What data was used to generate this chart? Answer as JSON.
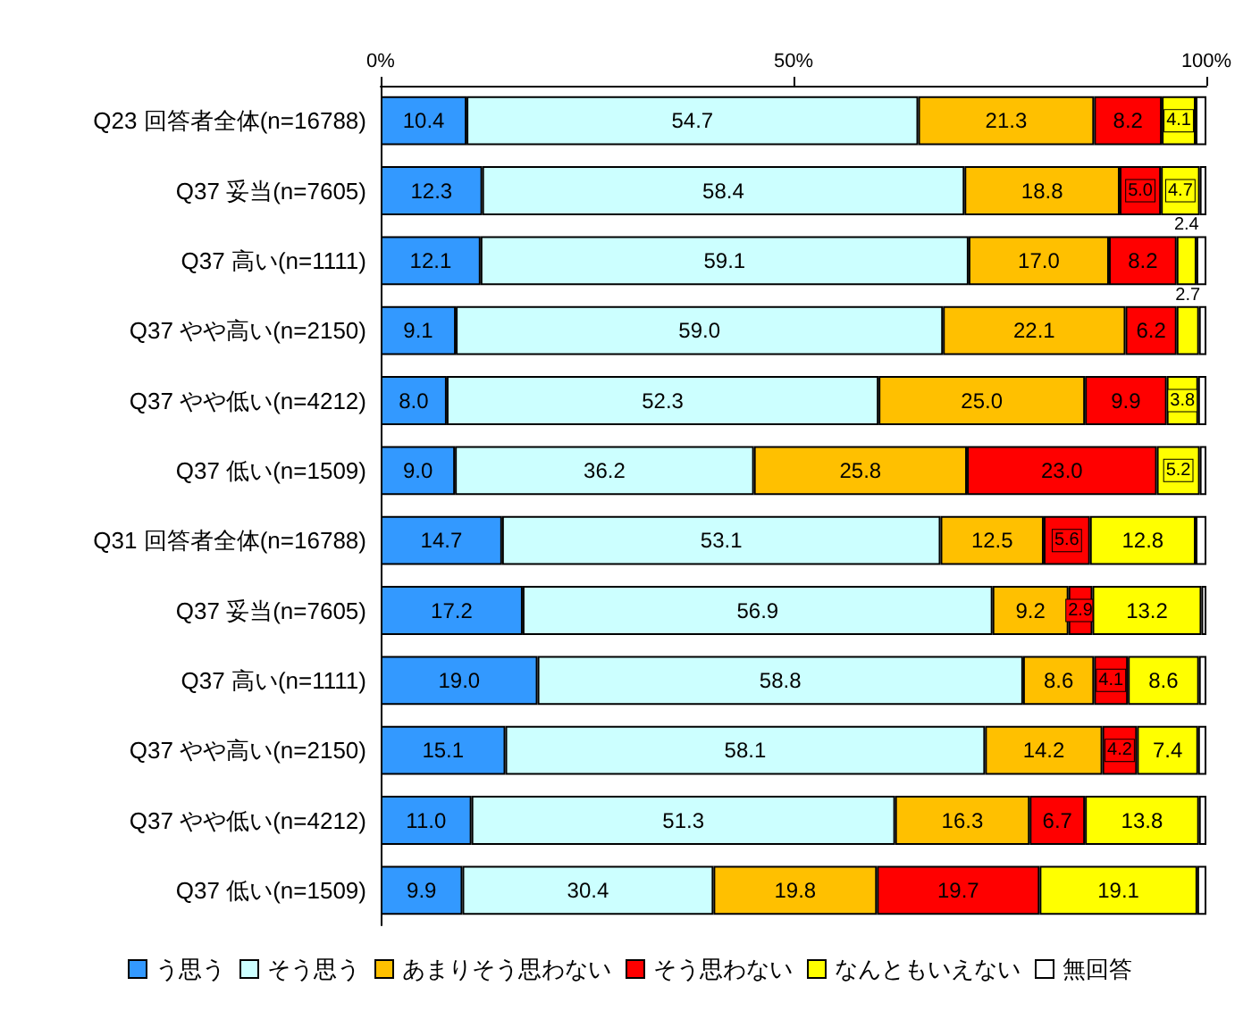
{
  "chart_data": {
    "type": "bar",
    "orientation": "horizontal",
    "stacked": true,
    "legend": "bottom",
    "grid": false,
    "categories": [
      "Q23 回答者全体(n=16788)",
      "Q37 妥当(n=7605)",
      "Q37 高い(n=1111)",
      "Q37 やや高い(n=2150)",
      "Q37 やや低い(n=4212)",
      "Q37 低い(n=1509)",
      "Q31 回答者全体(n=16788)",
      "Q37 妥当(n=7605)",
      "Q37 高い(n=1111)",
      "Q37 やや高い(n=2150)",
      "Q37 やや低い(n=4212)",
      "Q37 低い(n=1509)"
    ],
    "xlim": [
      0,
      100
    ],
    "xticks": [
      {
        "value": 0,
        "label": "0%"
      },
      {
        "value": 50,
        "label": "50%"
      },
      {
        "value": 100,
        "label": "100%"
      }
    ],
    "series": [
      {
        "name": "う思う",
        "color": "#3399ff",
        "values": [
          10.4,
          12.3,
          12.1,
          9.1,
          8.0,
          9.0,
          14.7,
          17.2,
          19.0,
          15.1,
          11.0,
          9.9
        ],
        "value_labels": [
          "10.4",
          "12.3",
          "12.1",
          "9.1",
          "8.0",
          "9.0",
          "14.7",
          "17.2",
          "19.0",
          "15.1",
          "11.0",
          "9.9"
        ]
      },
      {
        "name": "そう思う",
        "color": "#ccffff",
        "values": [
          54.7,
          58.4,
          59.1,
          59.0,
          52.3,
          36.2,
          53.1,
          56.9,
          58.8,
          58.1,
          51.3,
          30.4
        ],
        "value_labels": [
          "54.7",
          "58.4",
          "59.1",
          "59.0",
          "52.3",
          "36.2",
          "53.1",
          "56.9",
          "58.8",
          "58.1",
          "51.3",
          "30.4"
        ]
      },
      {
        "name": "あまりそう思わない",
        "color": "#ffc000",
        "values": [
          21.3,
          18.8,
          17.0,
          22.1,
          25.0,
          25.8,
          12.5,
          9.2,
          8.6,
          14.2,
          16.3,
          19.8
        ],
        "value_labels": [
          "21.3",
          "18.8",
          "17.0",
          "22.1",
          "25.0",
          "25.8",
          "12.5",
          "9.2",
          "8.6",
          "14.2",
          "16.3",
          "19.8"
        ]
      },
      {
        "name": "そう思わない",
        "color": "#ff0000",
        "values": [
          8.2,
          5.0,
          8.2,
          6.2,
          9.9,
          23.0,
          5.6,
          2.9,
          4.1,
          4.2,
          6.7,
          19.7
        ],
        "value_labels": [
          "8.2",
          "5.0",
          "8.2",
          "6.2",
          "9.9",
          "23.0",
          "5.6",
          "2.9",
          "4.1",
          "4.2",
          "6.7",
          "19.7"
        ]
      },
      {
        "name": "なんともいえない",
        "color": "#ffff00",
        "values": [
          4.1,
          4.7,
          2.4,
          2.7,
          3.8,
          5.2,
          12.8,
          13.2,
          8.6,
          7.4,
          13.8,
          19.1
        ],
        "value_labels": [
          "4.1",
          "4.7",
          "2.4",
          "2.7",
          "3.8",
          "5.2",
          "12.8",
          "13.2",
          "8.6",
          "7.4",
          "13.8",
          "19.1"
        ]
      },
      {
        "name": "無回答",
        "color": "#ffffff",
        "values": [
          1.3,
          0.8,
          1.2,
          0.9,
          1.0,
          0.8,
          1.3,
          0.6,
          0.9,
          1.0,
          0.9,
          1.1
        ],
        "value_labels": [
          null,
          null,
          null,
          null,
          null,
          null,
          null,
          null,
          null,
          null,
          null,
          null
        ]
      }
    ]
  }
}
